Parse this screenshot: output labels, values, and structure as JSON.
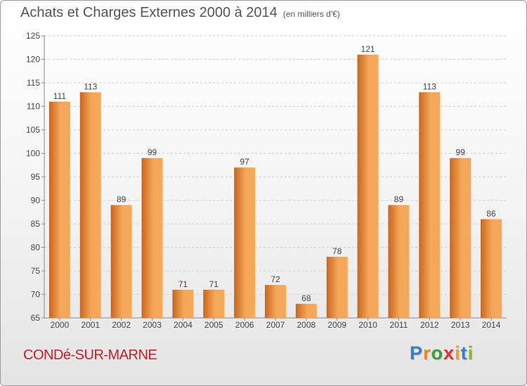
{
  "header": {
    "title": "Achats et Charges Externes 2000 à 2014",
    "unit_note": "(en milliers d'€)"
  },
  "footer": {
    "commune": "CONDé-SUR-MARNE",
    "logo": "Proxiti"
  },
  "colors": {
    "bar_light": "#f6a85a",
    "bar_dark": "#c8661c",
    "commune_text": "#c81e2a",
    "text": "#444444",
    "grid": "#cccccc",
    "axis": "#888888",
    "logo_letters": [
      "#3a7fc4",
      "#f08a1c",
      "#3aa03a",
      "#e03030",
      "#f0a020",
      "#3a7fc4",
      "#88b820"
    ]
  },
  "chart_data": {
    "type": "bar",
    "title": "Achats et Charges Externes 2000 à 2014",
    "subtitle": "(en milliers d'€)",
    "categories": [
      "2000",
      "2001",
      "2002",
      "2003",
      "2004",
      "2005",
      "2006",
      "2007",
      "2008",
      "2009",
      "2010",
      "2011",
      "2012",
      "2013",
      "2014"
    ],
    "values": [
      111,
      113,
      89,
      99,
      71,
      71,
      97,
      72,
      68,
      78,
      121,
      89,
      113,
      99,
      86
    ],
    "ylim": [
      65,
      125
    ],
    "yticks": [
      65,
      70,
      75,
      80,
      85,
      90,
      95,
      100,
      105,
      110,
      115,
      120,
      125
    ],
    "grid": "horizontal dashed",
    "data_labels": true
  }
}
